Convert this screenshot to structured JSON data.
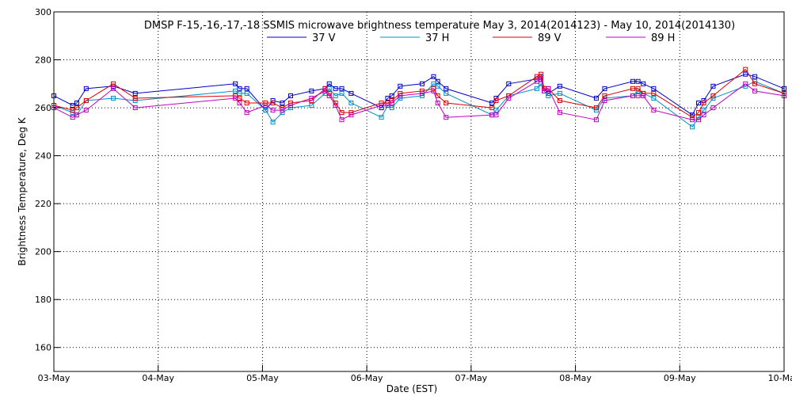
{
  "chart_data": {
    "type": "line",
    "title": "DMSP F-15,-16,-17,-18 SSMIS microwave brightness temperature May  3, 2014(2014123) - May 10, 2014(2014130)",
    "xlabel": "Date (EST)",
    "ylabel": "Brightness Temperature, Deg K",
    "xlim": [
      0,
      7
    ],
    "ylim": [
      150,
      300
    ],
    "x_ticks": [
      0,
      1,
      2,
      3,
      4,
      5,
      6,
      7
    ],
    "x_tick_labels": [
      "03-May",
      "04-May",
      "05-May",
      "06-May",
      "07-May",
      "08-May",
      "09-May",
      "10-May"
    ],
    "y_ticks": [
      160,
      180,
      200,
      220,
      240,
      260,
      280,
      300
    ],
    "grid": true,
    "legend_position": "top-center",
    "marker": "square",
    "series": [
      {
        "name": "37 V",
        "color": "#0000c8",
        "x": [
          0.0,
          0.18,
          0.22,
          0.31,
          0.57,
          0.78,
          1.74,
          1.78,
          1.85,
          2.03,
          2.1,
          2.19,
          2.27,
          2.47,
          2.6,
          2.64,
          2.7,
          2.76,
          2.85,
          3.14,
          3.2,
          3.24,
          3.32,
          3.53,
          3.64,
          3.68,
          3.76,
          4.2,
          4.24,
          4.36,
          4.63,
          4.67,
          4.7,
          4.74,
          4.85,
          5.2,
          5.28,
          5.55,
          5.6,
          5.65,
          5.75,
          6.12,
          6.18,
          6.23,
          6.32,
          6.63,
          6.72,
          7.0
        ],
        "y": [
          265,
          261,
          262,
          268,
          269,
          266,
          270,
          268,
          268,
          259,
          263,
          262,
          265,
          267,
          268,
          270,
          268,
          268,
          266,
          260,
          264,
          265,
          269,
          270,
          273,
          271,
          268,
          262,
          264,
          270,
          272,
          273,
          268,
          266,
          269,
          264,
          268,
          271,
          271,
          270,
          268,
          257,
          262,
          263,
          269,
          274,
          273,
          268
        ]
      },
      {
        "name": "37 H",
        "color": "#0090c8",
        "x": [
          0.0,
          0.18,
          0.22,
          0.31,
          0.57,
          0.78,
          1.74,
          1.78,
          1.85,
          2.03,
          2.1,
          2.19,
          2.27,
          2.47,
          2.6,
          2.64,
          2.7,
          2.76,
          2.85,
          3.14,
          3.2,
          3.24,
          3.32,
          3.53,
          3.64,
          3.68,
          3.76,
          4.2,
          4.24,
          4.36,
          4.63,
          4.67,
          4.7,
          4.74,
          4.85,
          5.2,
          5.28,
          5.55,
          5.6,
          5.65,
          5.75,
          6.12,
          6.18,
          6.23,
          6.32,
          6.63,
          6.72,
          7.0
        ],
        "y": [
          261,
          258,
          257,
          263,
          264,
          263,
          267,
          266,
          266,
          259,
          254,
          258,
          260,
          261,
          266,
          268,
          265,
          266,
          262,
          256,
          261,
          260,
          264,
          265,
          270,
          269,
          266,
          257,
          259,
          265,
          268,
          270,
          267,
          265,
          266,
          259,
          264,
          265,
          267,
          266,
          264,
          252,
          256,
          259,
          264,
          269,
          271,
          266
        ]
      },
      {
        "name": "89 V",
        "color": "#e00000",
        "x": [
          0.0,
          0.18,
          0.22,
          0.31,
          0.57,
          0.78,
          1.74,
          1.78,
          1.85,
          2.03,
          2.1,
          2.19,
          2.27,
          2.47,
          2.6,
          2.64,
          2.7,
          2.76,
          2.85,
          3.14,
          3.2,
          3.24,
          3.32,
          3.53,
          3.64,
          3.68,
          3.76,
          4.2,
          4.24,
          4.36,
          4.63,
          4.67,
          4.7,
          4.74,
          4.85,
          5.2,
          5.28,
          5.55,
          5.6,
          5.65,
          5.75,
          6.12,
          6.18,
          6.23,
          6.32,
          6.63,
          6.72,
          7.0
        ],
        "y": [
          261,
          259,
          260,
          263,
          270,
          264,
          265,
          264,
          262,
          262,
          262,
          260,
          262,
          263,
          268,
          266,
          262,
          258,
          258,
          262,
          262,
          263,
          266,
          267,
          268,
          265,
          262,
          260,
          263,
          265,
          273,
          274,
          268,
          268,
          263,
          260,
          265,
          268,
          268,
          266,
          266,
          256,
          258,
          262,
          265,
          276,
          270,
          266
        ]
      },
      {
        "name": "89 H",
        "color": "#c000c0",
        "x": [
          0.0,
          0.18,
          0.22,
          0.31,
          0.57,
          0.78,
          1.74,
          1.78,
          1.85,
          2.03,
          2.1,
          2.19,
          2.27,
          2.47,
          2.6,
          2.64,
          2.7,
          2.76,
          2.85,
          3.14,
          3.2,
          3.24,
          3.32,
          3.53,
          3.64,
          3.68,
          3.76,
          4.2,
          4.24,
          4.36,
          4.63,
          4.67,
          4.7,
          4.74,
          4.85,
          5.2,
          5.28,
          5.55,
          5.6,
          5.65,
          5.75,
          6.12,
          6.18,
          6.23,
          6.32,
          6.63,
          6.72,
          7.0
        ],
        "y": [
          260,
          256,
          257,
          259,
          268,
          260,
          264,
          262,
          258,
          261,
          259,
          259,
          261,
          264,
          267,
          265,
          261,
          255,
          257,
          261,
          261,
          262,
          265,
          266,
          267,
          262,
          256,
          257,
          257,
          264,
          271,
          272,
          267,
          268,
          258,
          255,
          263,
          265,
          265,
          265,
          259,
          255,
          255,
          257,
          260,
          270,
          267,
          265
        ]
      }
    ]
  }
}
